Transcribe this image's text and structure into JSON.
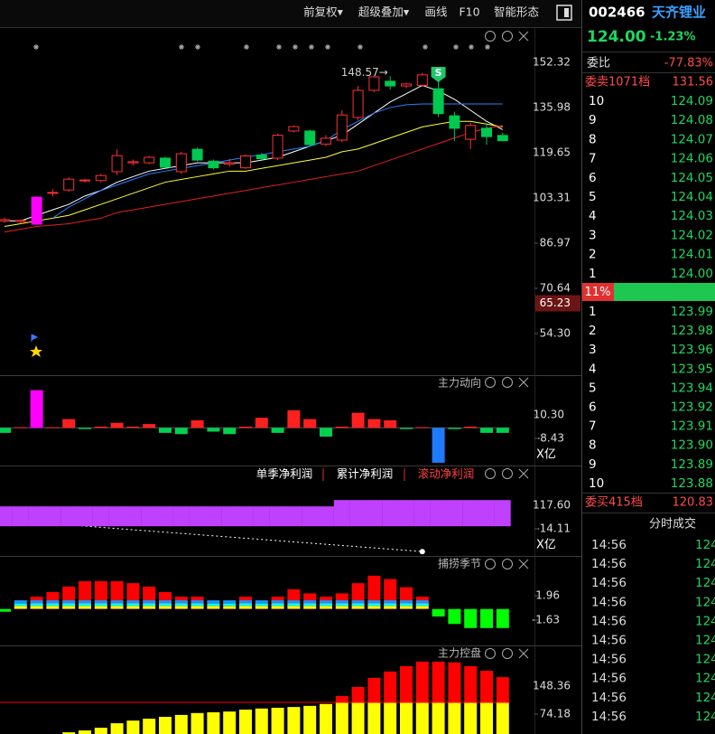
{
  "toolbar": [
    "前复权▾",
    "超级叠加▾",
    "画线",
    "F10",
    "智能形态"
  ],
  "kline": {
    "ylim": [
      39.25,
      164.41
    ],
    "yticks": [
      152.32,
      135.98,
      119.65,
      103.31,
      86.97,
      70.64,
      {
        "value": 54.3,
        "label": "54.30"
      }
    ],
    "marker": {
      "value": 65.23,
      "label": "65.23"
    },
    "annotation": "148.57→",
    "signal": "S",
    "up_color": "#ff3030",
    "down_color": "#00c850",
    "candles": [
      {
        "o": 95.0,
        "h": 96.2,
        "l": 94.3,
        "c": 95.5
      },
      {
        "o": 94.8,
        "h": 95.5,
        "l": 94.0,
        "c": 95.2
      },
      {
        "o": 93.8,
        "h": 103.6,
        "l": 93.8,
        "c": 103.6,
        "color": "#ff00ff"
      },
      {
        "o": 105.0,
        "h": 106.5,
        "l": 103.8,
        "c": 105.3
      },
      {
        "o": 106.2,
        "h": 110.8,
        "l": 105.5,
        "c": 110.1
      },
      {
        "o": 109.5,
        "h": 110.2,
        "l": 108.8,
        "c": 109.8
      },
      {
        "o": 109.6,
        "h": 112.0,
        "l": 109.0,
        "c": 111.4
      },
      {
        "o": 112.8,
        "h": 120.9,
        "l": 111.5,
        "c": 118.6
      },
      {
        "o": 116.0,
        "h": 117.2,
        "l": 115.0,
        "c": 116.4
      },
      {
        "o": 116.0,
        "h": 118.5,
        "l": 115.5,
        "c": 118.0
      },
      {
        "o": 117.7,
        "h": 118.3,
        "l": 114.0,
        "c": 114.4
      },
      {
        "o": 112.8,
        "h": 120.0,
        "l": 112.0,
        "c": 119.3
      },
      {
        "o": 120.9,
        "h": 121.5,
        "l": 116.5,
        "c": 117.0
      },
      {
        "o": 116.6,
        "h": 117.2,
        "l": 113.6,
        "c": 114.2
      },
      {
        "o": 115.5,
        "h": 117.5,
        "l": 114.6,
        "c": 116.0
      },
      {
        "o": 114.2,
        "h": 119.0,
        "l": 113.8,
        "c": 118.5
      },
      {
        "o": 118.8,
        "h": 119.5,
        "l": 117.0,
        "c": 117.5
      },
      {
        "o": 117.7,
        "h": 126.5,
        "l": 117.0,
        "c": 126.0
      },
      {
        "o": 127.5,
        "h": 129.5,
        "l": 127.0,
        "c": 129.1
      },
      {
        "o": 127.5,
        "h": 128.0,
        "l": 122.0,
        "c": 122.6
      },
      {
        "o": 122.8,
        "h": 126.0,
        "l": 122.0,
        "c": 124.9
      },
      {
        "o": 124.2,
        "h": 135.0,
        "l": 123.5,
        "c": 133.3
      },
      {
        "o": 132.4,
        "h": 143.8,
        "l": 131.5,
        "c": 142.2
      },
      {
        "o": 142.2,
        "h": 147.5,
        "l": 141.5,
        "c": 147.1
      },
      {
        "o": 145.5,
        "h": 147.3,
        "l": 142.5,
        "c": 143.8
      },
      {
        "o": 143.8,
        "h": 145.0,
        "l": 143.0,
        "c": 144.5
      },
      {
        "o": 144.0,
        "h": 148.57,
        "l": 143.5,
        "c": 147.8
      },
      {
        "o": 142.8,
        "h": 146.0,
        "l": 132.5,
        "c": 133.8
      },
      {
        "o": 133.0,
        "h": 134.5,
        "l": 124.0,
        "c": 128.5
      },
      {
        "o": 124.5,
        "h": 130.5,
        "l": 121.0,
        "c": 129.5
      },
      {
        "o": 128.5,
        "h": 130.0,
        "l": 122.5,
        "c": 125.5
      },
      {
        "o": 125.9,
        "h": 127.0,
        "l": 123.8,
        "c": 124.0
      }
    ],
    "ma": [
      {
        "color": "#ffffff",
        "values": [
          95,
          95,
          97,
          99,
          101,
          104,
          106,
          109,
          111,
          113,
          114,
          115,
          116,
          116,
          116,
          116,
          117,
          118,
          120,
          122,
          124,
          126,
          130,
          134,
          138,
          141,
          144,
          142,
          139,
          135,
          131,
          128
        ]
      },
      {
        "color": "#ffff30",
        "values": [
          93,
          94,
          95,
          96,
          97,
          99,
          101,
          103,
          105,
          107,
          109,
          110,
          111,
          112,
          113,
          113,
          114,
          115,
          116,
          117,
          118,
          120,
          121,
          123,
          125,
          127,
          129,
          130,
          131,
          131,
          130,
          129
        ]
      },
      {
        "color": "#e02020",
        "values": [
          91,
          92,
          93,
          93.5,
          94,
          95,
          96,
          98,
          99,
          100,
          101,
          102,
          103,
          104,
          105,
          106,
          107,
          108,
          109,
          110,
          111,
          112,
          113,
          115,
          117,
          119,
          121,
          123,
          125,
          127,
          128.5,
          129.5
        ]
      },
      {
        "color": "#2a7fff",
        "values": [
          null,
          null,
          null,
          96,
          100,
          103,
          106,
          108,
          110,
          112,
          113,
          114,
          115,
          116,
          117,
          118,
          119,
          120,
          121,
          122,
          124,
          128,
          131,
          134,
          136,
          137,
          137.3,
          137.3,
          137.3,
          137.3,
          137.3,
          137.3
        ]
      }
    ]
  },
  "main_force": {
    "title": "主力动向",
    "unit": "X亿",
    "ylim": [
      -30.02,
      41.26
    ],
    "yticks": [
      {
        "value": 10.3,
        "label": "10.30"
      },
      -8.43
    ],
    "values": [
      -4,
      0.5,
      30,
      0.5,
      7,
      -1,
      1,
      4,
      1,
      3,
      -4,
      -5,
      6,
      -3,
      -5,
      1,
      8,
      -4,
      14,
      7,
      -7,
      1,
      12,
      7,
      6,
      -1,
      0.5,
      -27.8,
      -1,
      1,
      -4,
      -4
    ],
    "colors": [
      "#00d050",
      "#ff2020",
      "#ff00ff",
      "#ff2020",
      "#ff2020",
      "#00d050",
      "#ff2020",
      "#ff2020",
      "#ff2020",
      "#ff2020",
      "#00d050",
      "#00d050",
      "#ff2020",
      "#00d050",
      "#00d050",
      "#ff2020",
      "#ff2020",
      "#00d050",
      "#ff2020",
      "#ff2020",
      "#00d050",
      "#ff2020",
      "#ff2020",
      "#ff2020",
      "#ff2020",
      "#00d050",
      "#ff2020",
      "#1e7bff",
      "#00d050",
      "#ff2020",
      "#00d050",
      "#00d050"
    ]
  },
  "net_profit": {
    "unit": "X亿",
    "ylim": [
      -166.3,
      335.6
    ],
    "yticks": [
      {
        "value": 117.6,
        "label": "117.60"
      },
      -14.11
    ],
    "selected": 2,
    "series": [
      {
        "name": "单季净利润",
        "color": "#ffffff",
        "values": [
          35,
          28.2,
          21.4,
          14.6,
          7.8,
          1,
          -5.9,
          -12.7,
          -19.5,
          -26.3,
          -33.1,
          -39.9,
          -46.7,
          -53.5,
          -60.3,
          -67.2,
          -74,
          -80.8,
          -87.6,
          -94.4,
          -101.2,
          -108,
          -114.8,
          -121.6,
          -128.4,
          -135.3,
          -142,
          null,
          null,
          null,
          null,
          null
        ]
      },
      {
        "name": "累计净利润",
        "color": "#ffffff"
      },
      {
        "name": "滚动净利润",
        "color": "#c040ff",
        "values": [
          111.6,
          111.6,
          111.6,
          111.6,
          111.6,
          111.6,
          111.6,
          111.6,
          111.6,
          111.6,
          111.6,
          111.6,
          111.6,
          111.6,
          111.6,
          111.6,
          111.6,
          111.6,
          111.6,
          111.6,
          111.6,
          147,
          147,
          147,
          147,
          147,
          147,
          147,
          147,
          147,
          147,
          147
        ]
      }
    ]
  },
  "catch_season": {
    "title": "捕捞季节",
    "ylim": [
      -5.36,
      7.68
    ],
    "yticks": [
      1.96,
      -1.63
    ],
    "up_color": "#ff0000",
    "down_color": "#00ff00",
    "stripe_colors": [
      "#ffff00",
      "#00ffff",
      "#1e90ff"
    ],
    "values": [
      -0.4,
      0.5,
      1.8,
      2.5,
      3.3,
      4.1,
      4.1,
      4.1,
      3.8,
      3.3,
      2.5,
      1.8,
      1.8,
      0.5,
      0.2,
      1.8,
      0.8,
      1.8,
      2.9,
      2.3,
      1.8,
      2.3,
      3.8,
      4.9,
      4.4,
      3.2,
      1.8,
      -1.1,
      -2.2,
      -2.8,
      -2.8,
      -2.8
    ]
  },
  "control": {
    "title": "主力控盘",
    "ylim": [
      21.53,
      253.65
    ],
    "yticks": [
      148.36,
      74.18
    ],
    "line_value": 105.3,
    "below_color": "#ffff00",
    "above_color": "#ff0000",
    "values": [
      null,
      null,
      null,
      null,
      26,
      31,
      38,
      50,
      57,
      62,
      67,
      72,
      77,
      79,
      81,
      86,
      89,
      91,
      93,
      96,
      101,
      122,
      146,
      170,
      187,
      201,
      213,
      213,
      211,
      201,
      189,
      172
    ]
  },
  "quote": {
    "code": "002466",
    "name": "天齐锂业",
    "price": "124.00",
    "change_pct": "-1.23%",
    "ratio_label": "委比",
    "ratio": "-77.83%",
    "ask_header": "委卖1071档",
    "ask_header_price": "131.56",
    "asks": [
      {
        "level": "10",
        "price": "124.09"
      },
      {
        "level": "9",
        "price": "124.08"
      },
      {
        "level": "8",
        "price": "124.07"
      },
      {
        "level": "7",
        "price": "124.06"
      },
      {
        "level": "6",
        "price": "124.05"
      },
      {
        "level": "5",
        "price": "124.04"
      },
      {
        "level": "4",
        "price": "124.03"
      },
      {
        "level": "3",
        "price": "124.02"
      },
      {
        "level": "2",
        "price": "124.01"
      },
      {
        "level": "1",
        "price": "124.00"
      }
    ],
    "mid": "11%",
    "bids": [
      {
        "level": "1",
        "price": "123.99"
      },
      {
        "level": "2",
        "price": "123.98"
      },
      {
        "level": "3",
        "price": "123.96"
      },
      {
        "level": "4",
        "price": "123.95"
      },
      {
        "level": "5",
        "price": "123.94"
      },
      {
        "level": "6",
        "price": "123.92"
      },
      {
        "level": "7",
        "price": "123.91"
      },
      {
        "level": "8",
        "price": "123.90"
      },
      {
        "level": "9",
        "price": "123.89"
      },
      {
        "level": "10",
        "price": "123.88"
      }
    ],
    "bid_header": "委买415档",
    "bid_header_price": "120.83",
    "trades_title": "分时成交",
    "trades": [
      {
        "time": "14:56",
        "price": "124"
      },
      {
        "time": "14:56",
        "price": "124"
      },
      {
        "time": "14:56",
        "price": "124"
      },
      {
        "time": "14:56",
        "price": "124"
      },
      {
        "time": "14:56",
        "price": "124"
      },
      {
        "time": "14:56",
        "price": "124"
      },
      {
        "time": "14:56",
        "price": "124"
      },
      {
        "time": "14:56",
        "price": "124"
      },
      {
        "time": "14:56",
        "price": "124"
      },
      {
        "time": "14:56",
        "price": "124"
      }
    ]
  }
}
